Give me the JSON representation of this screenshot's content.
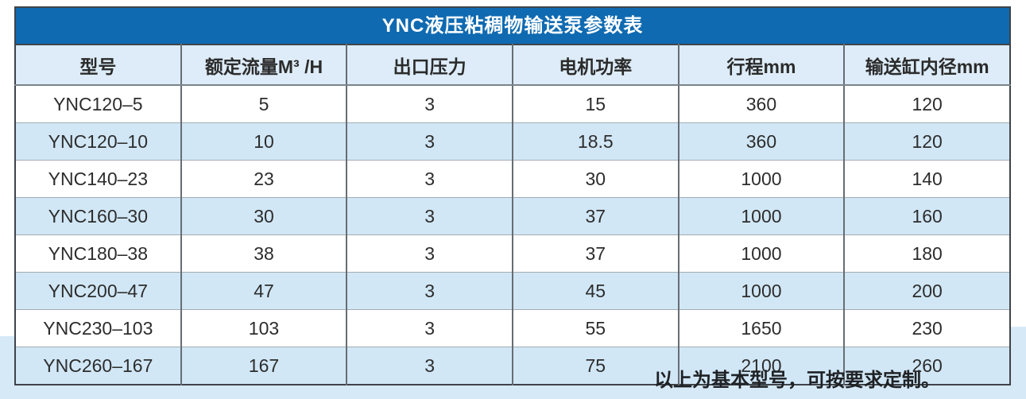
{
  "table": {
    "title": "YNC液压粘稠物输送泵参数表",
    "columns": [
      "型号",
      "额定流量M³ /H",
      "出口压力",
      "电机功率",
      "行程mm",
      "输送缸内径mm"
    ],
    "rows": [
      [
        "YNC120–5",
        "5",
        "3",
        "15",
        "360",
        "120"
      ],
      [
        "YNC120–10",
        "10",
        "3",
        "18.5",
        "360",
        "120"
      ],
      [
        "YNC140–23",
        "23",
        "3",
        "30",
        "1000",
        "140"
      ],
      [
        "YNC160–30",
        "30",
        "3",
        "37",
        "1000",
        "160"
      ],
      [
        "YNC180–38",
        "38",
        "3",
        "37",
        "1000",
        "180"
      ],
      [
        "YNC200–47",
        "47",
        "3",
        "45",
        "1000",
        "200"
      ],
      [
        "YNC230–103",
        "103",
        "3",
        "55",
        "1650",
        "230"
      ],
      [
        "YNC260–167",
        "167",
        "3",
        "75",
        "2100",
        "260"
      ]
    ],
    "footnote": "以上为基本型号，可按要求定制。"
  },
  "colors": {
    "title_bar": "#0f6ab1",
    "title_text": "#ffffff",
    "header_row": "#ddecf8",
    "alt_row": "#d1e7f6",
    "bottom_band": "#d6e9f7",
    "outer_border": "#3e4449",
    "inner_border": "#666d73",
    "row_divider": "#a3abb2",
    "body_text": "#2d2d2d"
  }
}
